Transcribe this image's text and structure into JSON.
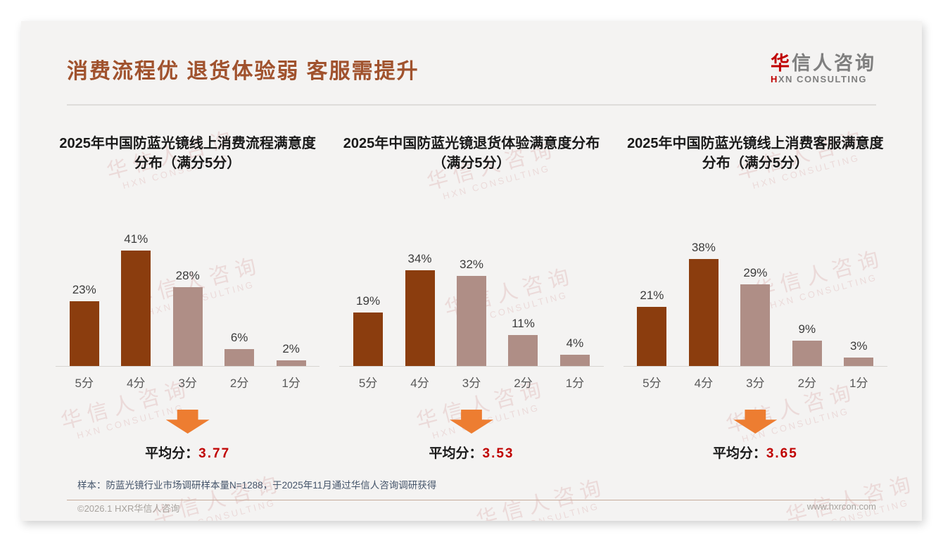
{
  "header": {
    "title": "消费流程优 退货体验弱 客服需提升",
    "logo": {
      "cn_accent": "华",
      "cn_rest": "信人咨询",
      "en_accent": "H",
      "en_rest": "XN CONSULTING"
    }
  },
  "watermark": {
    "line1": "华信人咨询",
    "line2": "HXN CONSULTING"
  },
  "labels": {
    "average_prefix": "平均分："
  },
  "colors": {
    "title_text": "#A0522D",
    "bar_dark": "#8B3D0E",
    "bar_light": "#AF8E86",
    "arrow": "#ED7D31",
    "average_value": "#C00000",
    "note_text": "#44546A",
    "footer_text": "#A8A39E"
  },
  "chart_data": [
    {
      "type": "bar",
      "title": "2025年中国防蓝光镜线上消费流程满意度分布（满分5分）",
      "categories": [
        "5分",
        "4分",
        "3分",
        "2分",
        "1分"
      ],
      "values": [
        23,
        41,
        28,
        6,
        2
      ],
      "value_labels": [
        "23%",
        "41%",
        "28%",
        "6%",
        "2%"
      ],
      "bar_colors": [
        "#8B3D0E",
        "#8B3D0E",
        "#AF8E86",
        "#AF8E86",
        "#AF8E86"
      ],
      "average": "3.77",
      "ylim": [
        0,
        45
      ],
      "grid": false,
      "legend": false
    },
    {
      "type": "bar",
      "title": "2025年中国防蓝光镜退货体验满意度分布（满分5分）",
      "categories": [
        "5分",
        "4分",
        "3分",
        "2分",
        "1分"
      ],
      "values": [
        19,
        34,
        32,
        11,
        4
      ],
      "value_labels": [
        "19%",
        "34%",
        "32%",
        "11%",
        "4%"
      ],
      "bar_colors": [
        "#8B3D0E",
        "#8B3D0E",
        "#AF8E86",
        "#AF8E86",
        "#AF8E86"
      ],
      "average": "3.53",
      "ylim": [
        0,
        45
      ],
      "grid": false,
      "legend": false
    },
    {
      "type": "bar",
      "title": "2025年中国防蓝光镜线上消费客服满意度分布（满分5分）",
      "categories": [
        "5分",
        "4分",
        "3分",
        "2分",
        "1分"
      ],
      "values": [
        21,
        38,
        29,
        9,
        3
      ],
      "value_labels": [
        "21%",
        "38%",
        "29%",
        "9%",
        "3%"
      ],
      "bar_colors": [
        "#8B3D0E",
        "#8B3D0E",
        "#AF8E86",
        "#AF8E86",
        "#AF8E86"
      ],
      "average": "3.65",
      "ylim": [
        0,
        45
      ],
      "grid": false,
      "legend": false
    }
  ],
  "footer": {
    "note": "样本：防蓝光镜行业市场调研样本量N=1288，于2025年11月通过华信人咨询调研获得",
    "left": "©2026.1 HXR华信人咨询",
    "right": "www.hxrcon.com"
  }
}
